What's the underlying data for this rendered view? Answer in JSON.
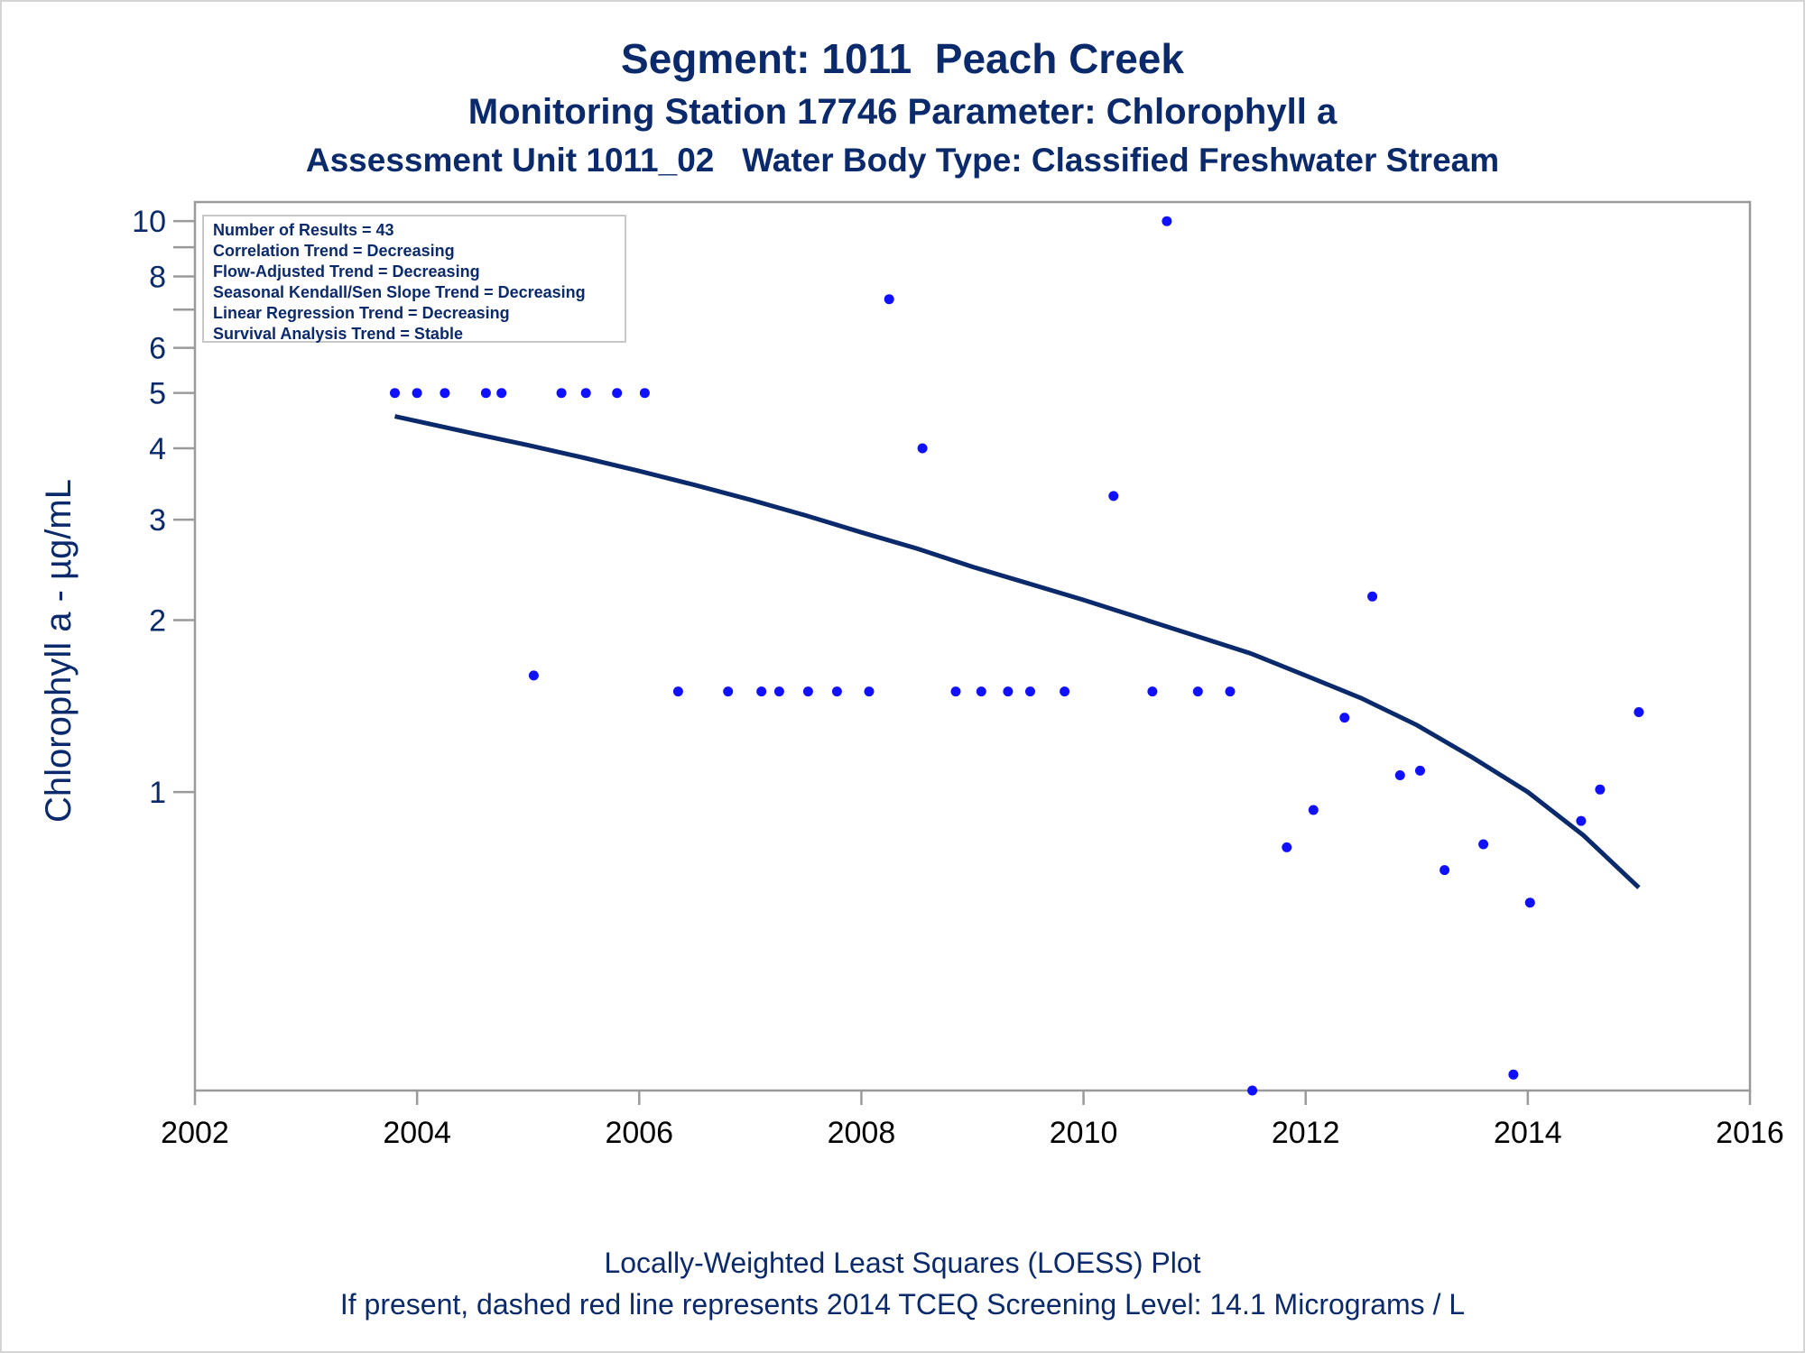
{
  "titles": {
    "line1": "Segment: 1011  Peach Creek",
    "line2": "Monitoring Station 17746 Parameter: Chlorophyll a",
    "line3": "Assessment Unit 1011_02   Water Body Type: Classified Freshwater Stream"
  },
  "footer": {
    "line1": "Locally-Weighted Least Squares (LOESS) Plot",
    "line2": "If present, dashed red line represents 2014 TCEQ Screening Level: 14.1 Micrograms / L"
  },
  "inset": {
    "lines": [
      "Number of Results = 43",
      "Correlation Trend = Decreasing",
      "Flow-Adjusted Trend = Decreasing",
      "Seasonal Kendall/Sen Slope Trend = Decreasing",
      "Linear Regression Trend = Decreasing",
      "Survival Analysis Trend = Stable"
    ]
  },
  "chart_data": {
    "type": "scatter",
    "ylabel": "Chlorophyll a -  µg/mL",
    "xlabel": "",
    "xlim": [
      2002,
      2016
    ],
    "ylim": [
      0.3,
      10.8
    ],
    "yscale": "log",
    "xticks": [
      "2002",
      "2004",
      "2006",
      "2008",
      "2010",
      "2012",
      "2014",
      "2016"
    ],
    "xtick_values": [
      2002,
      2004,
      2006,
      2008,
      2010,
      2012,
      2014,
      2016
    ],
    "yticks": [
      "1",
      "2",
      "3",
      "4",
      "5",
      "6",
      "8",
      "10"
    ],
    "ytick_values": [
      1,
      2,
      3,
      4,
      5,
      6,
      8,
      10
    ],
    "yminor_ticks": [
      7,
      9
    ],
    "grid": false,
    "colors": {
      "points": "#1010ff",
      "trend": "#0b2a6b",
      "axis": "#9a9a9a",
      "text": "#0b2a6b"
    },
    "series": [
      {
        "type": "scatter",
        "points": [
          [
            2003.8,
            5.0
          ],
          [
            2004.0,
            5.0
          ],
          [
            2004.25,
            5.0
          ],
          [
            2004.62,
            5.0
          ],
          [
            2004.76,
            5.0
          ],
          [
            2005.05,
            1.6
          ],
          [
            2005.3,
            5.0
          ],
          [
            2005.52,
            5.0
          ],
          [
            2005.8,
            5.0
          ],
          [
            2006.05,
            5.0
          ],
          [
            2006.35,
            1.5
          ],
          [
            2006.8,
            1.5
          ],
          [
            2007.1,
            1.5
          ],
          [
            2007.26,
            1.5
          ],
          [
            2007.52,
            1.5
          ],
          [
            2007.78,
            1.5
          ],
          [
            2008.07,
            1.5
          ],
          [
            2008.25,
            7.3
          ],
          [
            2008.55,
            4.0
          ],
          [
            2008.85,
            1.5
          ],
          [
            2009.08,
            1.5
          ],
          [
            2009.32,
            1.5
          ],
          [
            2009.52,
            1.5
          ],
          [
            2009.83,
            1.5
          ],
          [
            2010.27,
            3.3
          ],
          [
            2010.62,
            1.5
          ],
          [
            2010.75,
            10.0
          ],
          [
            2011.03,
            1.5
          ],
          [
            2011.32,
            1.5
          ],
          [
            2011.52,
            0.3
          ],
          [
            2011.83,
            0.8
          ],
          [
            2012.07,
            0.93
          ],
          [
            2012.35,
            1.35
          ],
          [
            2012.6,
            2.2
          ],
          [
            2012.85,
            1.07
          ],
          [
            2013.03,
            1.09
          ],
          [
            2013.25,
            0.73
          ],
          [
            2013.6,
            0.81
          ],
          [
            2013.87,
            0.32
          ],
          [
            2014.02,
            0.64
          ],
          [
            2014.48,
            0.89
          ],
          [
            2014.65,
            1.01
          ],
          [
            2015.0,
            1.38
          ]
        ]
      },
      {
        "type": "line",
        "points": [
          [
            2003.8,
            4.55
          ],
          [
            2004.5,
            4.25
          ],
          [
            2005.0,
            4.05
          ],
          [
            2005.5,
            3.85
          ],
          [
            2006.0,
            3.65
          ],
          [
            2006.5,
            3.45
          ],
          [
            2007.0,
            3.25
          ],
          [
            2007.5,
            3.05
          ],
          [
            2008.0,
            2.85
          ],
          [
            2008.5,
            2.67
          ],
          [
            2009.0,
            2.48
          ],
          [
            2009.5,
            2.32
          ],
          [
            2010.0,
            2.17
          ],
          [
            2010.5,
            2.02
          ],
          [
            2011.0,
            1.88
          ],
          [
            2011.5,
            1.75
          ],
          [
            2012.0,
            1.6
          ],
          [
            2012.5,
            1.46
          ],
          [
            2013.0,
            1.31
          ],
          [
            2013.5,
            1.15
          ],
          [
            2014.0,
            1.0
          ],
          [
            2014.5,
            0.84
          ],
          [
            2015.0,
            0.68
          ]
        ]
      }
    ]
  }
}
